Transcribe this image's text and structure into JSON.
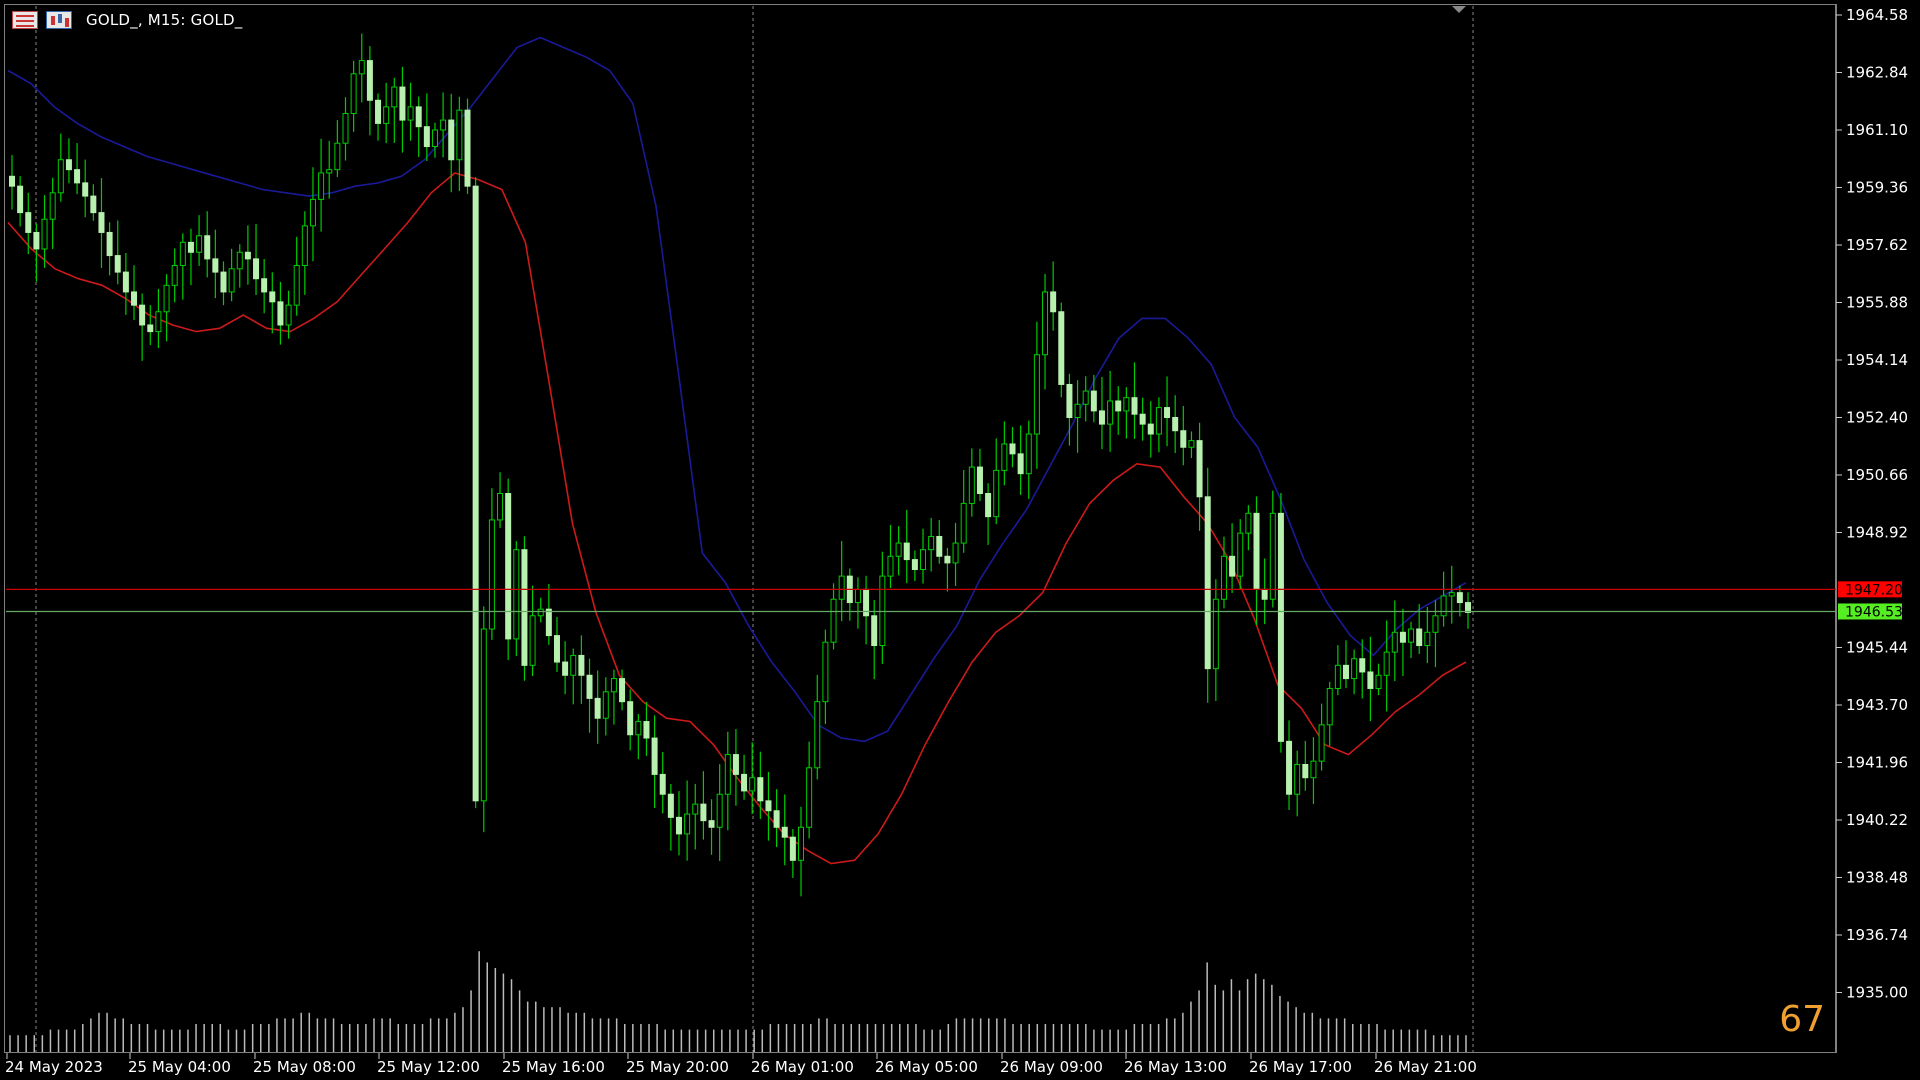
{
  "window": {
    "title": "GOLD_, M15:  GOLD_",
    "icons": [
      "market-watch-icon",
      "one-click-trading-icon"
    ]
  },
  "overlay": {
    "tick_counter": "67"
  },
  "price_scale": {
    "labels": [
      "1964.58",
      "1962.84",
      "1961.10",
      "1959.36",
      "1957.62",
      "1955.88",
      "1954.14",
      "1952.40",
      "1950.66",
      "1948.92",
      "1945.44",
      "1943.70",
      "1941.96",
      "1940.22",
      "1938.48",
      "1936.74",
      "1935.00"
    ]
  },
  "time_scale": {
    "labels": [
      "24 May 2023",
      "25 May 04:00",
      "25 May 08:00",
      "25 May 12:00",
      "25 May 16:00",
      "25 May 20:00",
      "26 May 01:00",
      "26 May 05:00",
      "26 May 09:00",
      "26 May 13:00",
      "26 May 17:00",
      "26 May 21:00"
    ]
  },
  "colors": {
    "background": "#000000",
    "bull_candle": "#b8f0b0",
    "candle_wick": "#00cc00",
    "upper_band": "#1a1a99",
    "lower_band": "#cc1a1a",
    "ask_line": "#cc0000",
    "bid_line": "#66aa66",
    "volume": "#bbbbbb",
    "grid_separator": "#888888",
    "ask_tag": "#ff0000",
    "bid_tag": "#55ee22",
    "counter": "#f0a030"
  },
  "price_tags": {
    "ask": "1947.20",
    "bid": "1946.53"
  },
  "chart_data": {
    "type": "candlestick",
    "symbol": "GOLD_",
    "timeframe": "M15",
    "ylim": [
      1935.0,
      1965.4
    ],
    "ask": 1947.2,
    "bid": 1946.53,
    "close_path": [
      1959.4,
      1958.6,
      1958.0,
      1957.5,
      1958.4,
      1959.2,
      1960.2,
      1959.9,
      1959.5,
      1959.1,
      1958.6,
      1958.0,
      1957.3,
      1956.8,
      1956.2,
      1955.8,
      1955.2,
      1955.0,
      1955.6,
      1956.4,
      1957.0,
      1957.7,
      1957.4,
      1957.9,
      1957.2,
      1956.8,
      1956.2,
      1956.9,
      1957.4,
      1957.2,
      1956.6,
      1956.2,
      1955.9,
      1955.2,
      1955.8,
      1957.0,
      1958.2,
      1959.0,
      1959.8,
      1959.9,
      1960.7,
      1961.6,
      1962.8,
      1963.2,
      1962.0,
      1961.3,
      1961.8,
      1962.4,
      1961.4,
      1961.8,
      1961.2,
      1960.6,
      1961.1,
      1961.4,
      1960.2,
      1961.7,
      1959.4,
      1940.8,
      1946.0,
      1949.3,
      1950.1,
      1945.7,
      1948.4,
      1944.9,
      1946.4,
      1946.6,
      1945.8,
      1945.0,
      1944.6,
      1945.2,
      1944.6,
      1943.9,
      1943.3,
      1944.1,
      1944.5,
      1943.8,
      1942.8,
      1943.2,
      1942.7,
      1941.6,
      1941.0,
      1940.3,
      1939.8,
      1940.4,
      1940.7,
      1940.2,
      1940.0,
      1941.0,
      1942.2,
      1941.6,
      1941.1,
      1941.5,
      1940.8,
      1940.5,
      1940.0,
      1939.7,
      1939.0,
      1940.0,
      1941.8,
      1943.8,
      1945.6,
      1946.9,
      1947.6,
      1946.8,
      1947.2,
      1946.4,
      1945.5,
      1947.6,
      1948.2,
      1948.6,
      1948.1,
      1947.8,
      1948.4,
      1948.8,
      1948.2,
      1948.0,
      1948.6,
      1949.8,
      1950.9,
      1950.1,
      1949.4,
      1950.8,
      1951.6,
      1951.3,
      1950.7,
      1951.9,
      1954.3,
      1956.2,
      1955.6,
      1953.4,
      1952.4,
      1952.8,
      1953.2,
      1952.6,
      1952.2,
      1952.9,
      1952.6,
      1953.0,
      1952.5,
      1952.2,
      1951.9,
      1952.7,
      1952.4,
      1952.0,
      1951.5,
      1951.7,
      1950.0,
      1944.8,
      1946.9,
      1948.2,
      1947.6,
      1948.9,
      1949.5,
      1947.2,
      1946.9,
      1949.5,
      1942.6,
      1941.0,
      1941.9,
      1941.5,
      1942.0,
      1943.1,
      1944.2,
      1944.9,
      1944.5,
      1945.1,
      1944.7,
      1944.2,
      1944.6,
      1945.3,
      1945.9,
      1945.6,
      1946.0,
      1945.5,
      1945.9,
      1946.4,
      1947.0,
      1947.1,
      1946.8,
      1946.5
    ],
    "upper_band_path": [
      1962.9,
      1962.5,
      1961.8,
      1961.3,
      1960.9,
      1960.6,
      1960.3,
      1960.1,
      1959.9,
      1959.7,
      1959.5,
      1959.3,
      1959.2,
      1959.1,
      1959.2,
      1959.4,
      1959.5,
      1959.7,
      1960.2,
      1961.0,
      1961.8,
      1962.7,
      1963.6,
      1963.9,
      1963.6,
      1963.3,
      1962.9,
      1961.9,
      1958.8,
      1953.6,
      1948.3,
      1947.4,
      1946.1,
      1945.0,
      1944.1,
      1943.1,
      1942.7,
      1942.6,
      1942.9,
      1944.0,
      1945.1,
      1946.1,
      1947.5,
      1948.6,
      1949.6,
      1950.9,
      1952.2,
      1953.6,
      1954.8,
      1955.4,
      1955.4,
      1954.8,
      1954.0,
      1952.4,
      1951.5,
      1949.9,
      1948.1,
      1946.8,
      1945.8,
      1945.2,
      1946.0,
      1946.6,
      1947.0,
      1947.4
    ],
    "lower_band_path": [
      1958.3,
      1957.5,
      1956.9,
      1956.6,
      1956.4,
      1956.0,
      1955.5,
      1955.2,
      1955.0,
      1955.1,
      1955.5,
      1955.1,
      1955.0,
      1955.4,
      1955.9,
      1956.7,
      1957.5,
      1958.3,
      1959.2,
      1959.8,
      1959.6,
      1959.3,
      1957.7,
      1953.5,
      1949.2,
      1946.5,
      1944.6,
      1943.8,
      1943.3,
      1943.2,
      1942.5,
      1941.5,
      1940.6,
      1939.8,
      1939.3,
      1938.9,
      1939.0,
      1939.8,
      1941.0,
      1942.5,
      1943.8,
      1945.0,
      1945.9,
      1946.4,
      1947.1,
      1948.6,
      1949.8,
      1950.5,
      1951.0,
      1950.9,
      1950.0,
      1949.2,
      1948.0,
      1946.3,
      1944.3,
      1943.6,
      1942.5,
      1942.2,
      1942.8,
      1943.5,
      1944.0,
      1944.6,
      1945.0
    ],
    "volume_path": [
      3,
      3,
      3,
      3,
      3,
      4,
      4,
      4,
      4,
      5,
      6,
      7,
      7,
      6,
      6,
      5,
      5,
      5,
      4,
      4,
      4,
      4,
      4,
      5,
      5,
      5,
      5,
      4,
      4,
      4,
      5,
      5,
      5,
      6,
      6,
      6,
      7,
      7,
      6,
      6,
      6,
      5,
      5,
      5,
      5,
      6,
      6,
      6,
      5,
      5,
      5,
      5,
      6,
      6,
      6,
      7,
      8,
      11,
      18,
      16,
      15,
      14,
      13,
      11,
      9,
      9,
      8,
      8,
      8,
      7,
      7,
      7,
      6,
      6,
      6,
      6,
      5,
      5,
      5,
      5,
      5,
      4,
      4,
      4,
      4,
      4,
      4,
      4,
      4,
      4,
      4,
      4,
      4,
      4,
      5,
      5,
      5,
      5,
      5,
      5,
      6,
      6,
      5,
      5,
      5,
      5,
      5,
      5,
      5,
      5,
      5,
      5,
      5,
      4,
      4,
      4,
      5,
      6,
      6,
      6,
      6,
      6,
      6,
      6,
      5,
      5,
      5,
      5,
      5,
      5,
      5,
      5,
      5,
      5,
      4,
      4,
      4,
      4,
      4,
      5,
      5,
      5,
      5,
      6,
      6,
      7,
      9,
      11,
      16,
      12,
      11,
      13,
      11,
      13,
      14,
      13,
      12,
      10,
      9,
      8,
      7,
      7,
      6,
      6,
      6,
      6,
      5,
      5,
      5,
      5,
      4,
      4,
      4,
      4,
      4,
      4,
      3,
      3,
      3,
      3,
      3
    ]
  }
}
